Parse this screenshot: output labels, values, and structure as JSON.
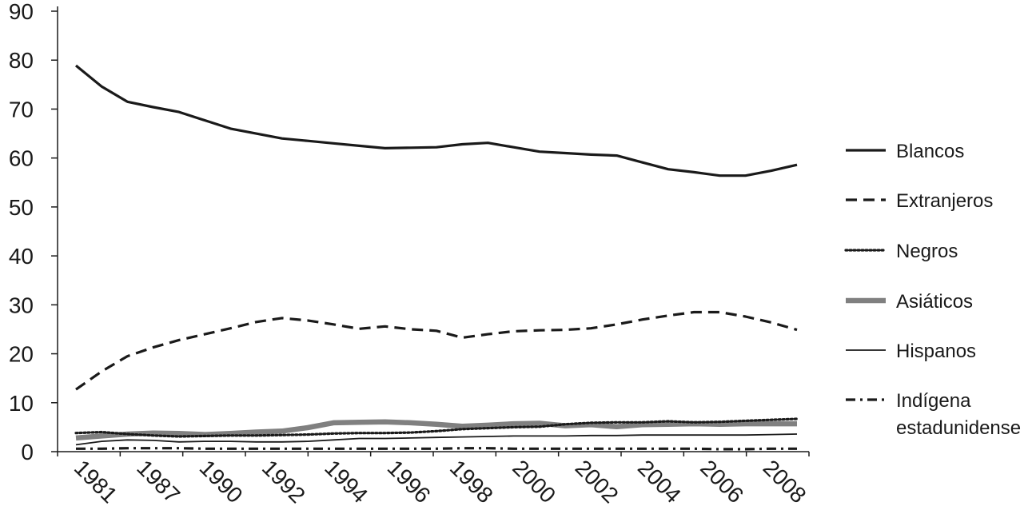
{
  "chart_data": {
    "type": "line",
    "title": "",
    "xlabel": "",
    "ylabel": "",
    "ylim": [
      0,
      90
    ],
    "yticks": [
      0,
      10,
      20,
      30,
      40,
      50,
      60,
      70,
      80,
      90
    ],
    "x_tick_labels": [
      "1981",
      "1987",
      "1990",
      "1992",
      "1994",
      "1996",
      "1998",
      "2000",
      "2002",
      "2004",
      "2006",
      "2008"
    ],
    "legend_position": "right",
    "grid": false,
    "series": [
      {
        "name": "Blancos",
        "color": "#1a1a1a",
        "style": "solid-thick",
        "values": [
          78.9,
          74.6,
          71.5,
          70.4,
          69.4,
          67.7,
          66.0,
          65.0,
          64.0,
          63.5,
          63.0,
          62.5,
          62.0,
          62.1,
          62.2,
          62.8,
          63.1,
          62.2,
          61.3,
          61.0,
          60.7,
          60.5,
          59.1,
          57.7,
          57.1,
          56.4,
          56.4,
          57.4,
          58.6
        ]
      },
      {
        "name": "Extranjeros",
        "color": "#1a1a1a",
        "style": "dashed",
        "values": [
          12.7,
          16.4,
          19.5,
          21.3,
          22.8,
          24.0,
          25.2,
          26.5,
          27.3,
          26.8,
          26.0,
          25.1,
          25.6,
          25.0,
          24.7,
          23.3,
          24.0,
          24.6,
          24.8,
          24.9,
          25.2,
          26.0,
          27.0,
          27.8,
          28.5,
          28.5,
          27.6,
          26.4,
          24.9
        ]
      },
      {
        "name": "Negros",
        "color": "#1a1a1a",
        "style": "dotted",
        "values": [
          3.8,
          4.0,
          3.6,
          3.3,
          3.1,
          3.2,
          3.3,
          3.3,
          3.4,
          3.5,
          3.7,
          3.8,
          3.8,
          3.9,
          4.2,
          4.6,
          4.8,
          5.0,
          5.1,
          5.6,
          5.9,
          6.0,
          6.0,
          6.2,
          6.0,
          6.1,
          6.3,
          6.5,
          6.7
        ]
      },
      {
        "name": "Asiáticos",
        "color": "#808080",
        "style": "solid-wide-gray",
        "values": [
          2.8,
          3.2,
          3.6,
          3.8,
          3.7,
          3.5,
          3.7,
          4.0,
          4.2,
          4.9,
          5.9,
          6.0,
          6.1,
          5.9,
          5.6,
          5.2,
          5.4,
          5.7,
          5.8,
          5.3,
          5.5,
          5.1,
          5.5,
          5.6,
          5.7,
          5.6,
          5.7,
          5.7,
          5.7
        ]
      },
      {
        "name": "Hispanos",
        "color": "#1a1a1a",
        "style": "solid-thin",
        "values": [
          1.4,
          2.1,
          2.4,
          2.3,
          2.0,
          2.1,
          2.1,
          2.0,
          2.0,
          2.1,
          2.4,
          2.7,
          2.7,
          2.8,
          2.9,
          3.0,
          3.1,
          3.2,
          3.2,
          3.2,
          3.3,
          3.3,
          3.4,
          3.4,
          3.4,
          3.4,
          3.4,
          3.5,
          3.6
        ]
      },
      {
        "name": "Indígena estadunidense",
        "legend_lines": [
          "Indígena",
          "estadunidense"
        ],
        "color": "#1a1a1a",
        "style": "dash-dot",
        "values": [
          0.6,
          0.6,
          0.7,
          0.7,
          0.7,
          0.6,
          0.6,
          0.6,
          0.6,
          0.6,
          0.6,
          0.6,
          0.6,
          0.6,
          0.6,
          0.7,
          0.7,
          0.6,
          0.6,
          0.6,
          0.6,
          0.6,
          0.6,
          0.6,
          0.6,
          0.5,
          0.5,
          0.6,
          0.6
        ]
      }
    ]
  }
}
